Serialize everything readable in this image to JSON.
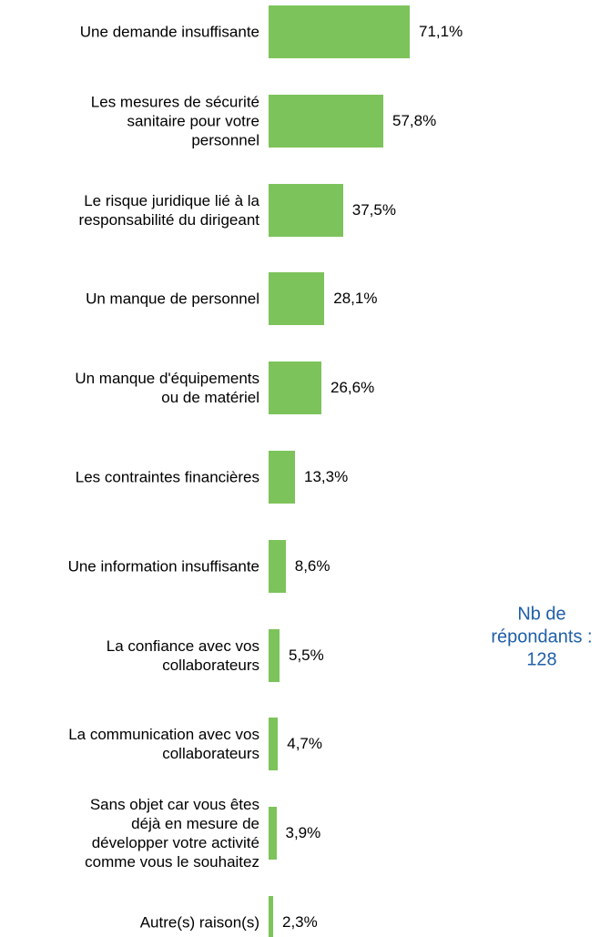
{
  "chart_data": {
    "type": "bar",
    "orientation": "horizontal",
    "categories": [
      "Une demande insuffisante",
      "Les mesures de sécurité\nsanitaire pour votre\npersonnel",
      "Le risque juridique lié à la\nresponsabilité du dirigeant",
      "Un manque de personnel",
      "Un manque d'équipements\nou de matériel",
      "Les contraintes financières",
      "Une information insuffisante",
      "La confiance avec vos\ncollaborateurs",
      "La communication avec vos\ncollaborateurs",
      "Sans objet car vous êtes\ndéjà en mesure de\ndévelopper votre activité\ncomme vous le souhaitez",
      "Autre(s) raison(s)"
    ],
    "values": [
      71.1,
      57.8,
      37.5,
      28.1,
      26.6,
      13.3,
      8.6,
      5.5,
      4.7,
      3.9,
      2.3
    ],
    "value_labels": [
      "71,1%",
      "57,8%",
      "37,5%",
      "28,1%",
      "26,6%",
      "13,3%",
      "8,6%",
      "5,5%",
      "4,7%",
      "3,9%",
      "2,3%"
    ],
    "color": "#7dc35b",
    "annotation": "Nb de\nrépondants :\n128"
  }
}
